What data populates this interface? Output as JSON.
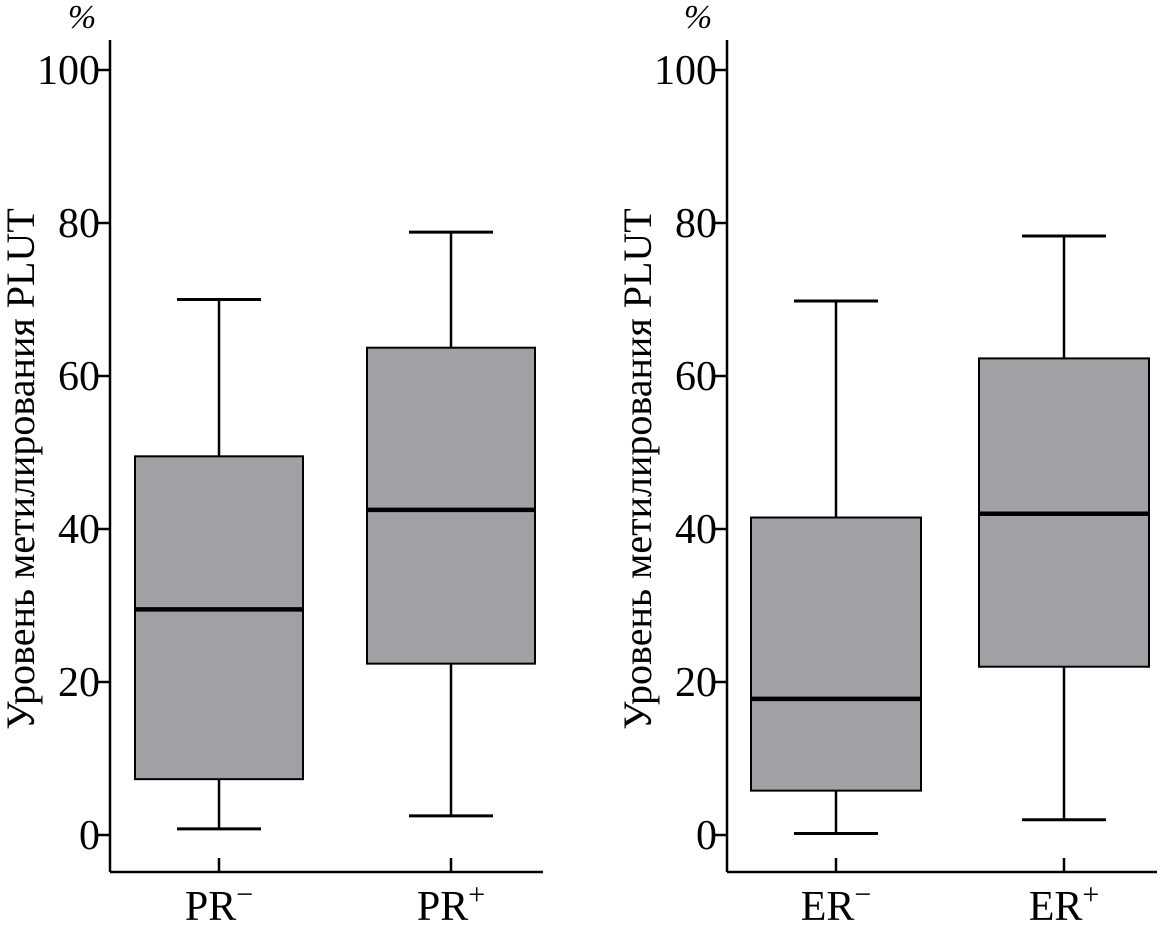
{
  "chart_data": [
    {
      "type": "box",
      "ylabel": "Уровень метилирования PLUT",
      "unit": "%",
      "ylim": [
        0,
        100
      ],
      "yticks": [
        0,
        20,
        40,
        60,
        80,
        100
      ],
      "categories": [
        {
          "base": "PR",
          "sup": "−"
        },
        {
          "base": "PR",
          "sup": "+"
        }
      ],
      "boxes": [
        {
          "min": 0.8,
          "q1": 7.3,
          "median": 29.5,
          "q3": 49.5,
          "max": 70.0
        },
        {
          "min": 2.5,
          "q1": 22.4,
          "median": 42.5,
          "q3": 63.7,
          "max": 78.8
        }
      ],
      "box_color": "#a0a1a4"
    },
    {
      "type": "box",
      "ylabel": "Уровень метилирования PLUT",
      "unit": "%",
      "ylim": [
        0,
        100
      ],
      "yticks": [
        0,
        20,
        40,
        60,
        80,
        100
      ],
      "categories": [
        {
          "base": "ER",
          "sup": "−"
        },
        {
          "base": "ER",
          "sup": "+"
        }
      ],
      "boxes": [
        {
          "min": 0.2,
          "q1": 5.8,
          "median": 17.8,
          "q3": 41.5,
          "max": 69.8
        },
        {
          "min": 2.0,
          "q1": 22.0,
          "median": 42.0,
          "q3": 62.3,
          "max": 78.3
        }
      ],
      "box_color": "#a0a1a4"
    }
  ]
}
